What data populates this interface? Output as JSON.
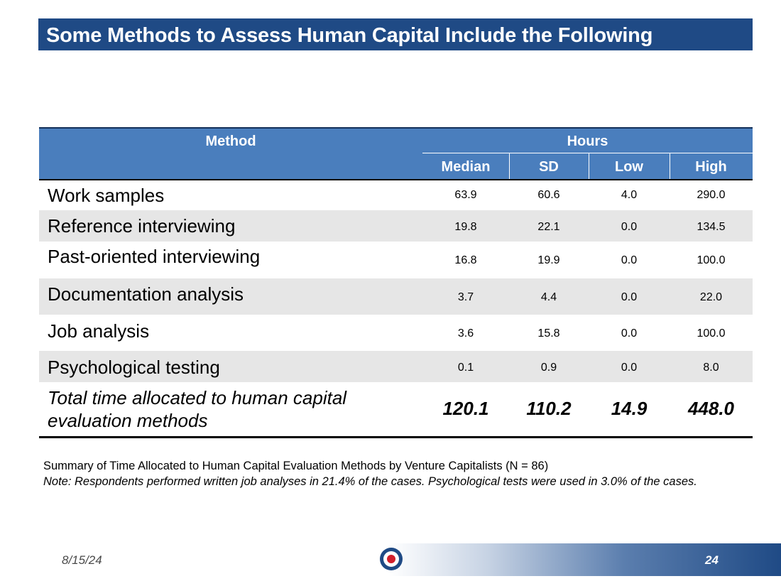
{
  "title": "Some Methods to Assess Human Capital Include the Following",
  "table": {
    "method_header": "Method",
    "group_header": "Hours",
    "columns": [
      "Median",
      "SD",
      "Low",
      "High"
    ],
    "rows": [
      {
        "method": "Work samples",
        "values": [
          "63.9",
          "60.6",
          "4.0",
          "290.0"
        ]
      },
      {
        "method": "Reference interviewing",
        "values": [
          "19.8",
          "22.1",
          "0.0",
          "134.5"
        ]
      },
      {
        "method": "Past-oriented interviewing",
        "values": [
          "16.8",
          "19.9",
          "0.0",
          "100.0"
        ]
      },
      {
        "method": "Documentation analysis",
        "values": [
          "3.7",
          "4.4",
          "0.0",
          "22.0"
        ]
      },
      {
        "method": "Job analysis",
        "values": [
          "3.6",
          "15.8",
          "0.0",
          "100.0"
        ]
      },
      {
        "method": "Psychological testing",
        "values": [
          "0.1",
          "0.9",
          "0.0",
          "8.0"
        ]
      }
    ],
    "total": {
      "label_line1": "Total time allocated to human capital",
      "label_line2": "evaluation methods",
      "values": [
        "120.1",
        "110.2",
        "14.9",
        "448.0"
      ]
    }
  },
  "caption": {
    "summary": "Summary of Time Allocated to Human Capital Evaluation Methods by Venture Capitalists (N = 86)",
    "note": "Note: Respondents performed written job analyses in 21.4% of the cases. Psychological tests were used in 3.0% of the cases."
  },
  "footer": {
    "date": "8/15/24",
    "page_number": "24",
    "logo_icon": "roundel-icon"
  },
  "colors": {
    "title_bar": "#1f4a85",
    "table_header": "#4a7ebd",
    "row_shade": "#e6e6e6",
    "roundel_red": "#d21f2b",
    "roundel_blue": "#1f4a85"
  }
}
